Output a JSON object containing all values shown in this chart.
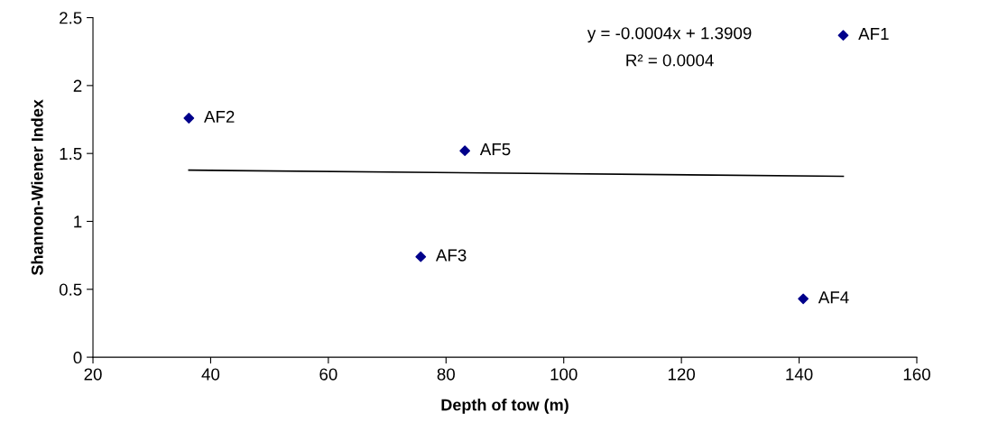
{
  "chart_data": {
    "type": "scatter",
    "xlabel": "Depth of tow (m)",
    "ylabel": "Shannon-Wiener Index",
    "series": [
      {
        "color": "#00008b",
        "marker": "diamond",
        "x": [
          147.5,
          36.3,
          75.7,
          140.7,
          83.2
        ],
        "values": [
          2.37,
          1.76,
          0.74,
          0.43,
          1.52
        ]
      },
      {
        "type": "line",
        "color": "#000000",
        "marker": "none",
        "line_style": "solid",
        "x": [
          36.3,
          147.5
        ],
        "values": [
          1.377,
          1.332
        ]
      }
    ],
    "annotations": [
      {
        "text": "AF1",
        "x": 147.5,
        "y": 2.37
      },
      {
        "text": "AF2",
        "x": 36.3,
        "y": 1.76
      },
      {
        "text": "AF3",
        "x": 75.7,
        "y": 0.74
      },
      {
        "text": "AF4",
        "x": 140.7,
        "y": 0.43
      },
      {
        "text": "AF5",
        "x": 83.2,
        "y": 1.52
      },
      "y = -0.0004x + 1.3909",
      "R² = 0.0004"
    ],
    "xlim": [
      20,
      160
    ],
    "xticks": [
      20,
      40,
      60,
      80,
      100,
      120,
      140,
      160
    ],
    "ylim": [
      0,
      2.5
    ],
    "yticks": [
      0,
      0.5,
      1,
      1.5,
      2,
      2.5
    ],
    "grid": false,
    "legend": false
  }
}
